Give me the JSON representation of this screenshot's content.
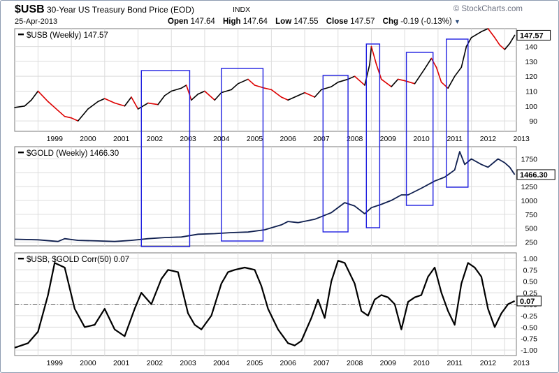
{
  "header": {
    "symbol": "$USB",
    "description": "30-Year US Treasury Bond Price (EOD)",
    "exchange": "INDX",
    "brand": "© StockCharts.com",
    "date": "25-Apr-2013",
    "open_label": "Open",
    "open": "147.64",
    "high_label": "High",
    "high": "147.64",
    "low_label": "Low",
    "low": "147.55",
    "close_label": "Close",
    "close": "147.57",
    "chg_label": "Chg",
    "chg": "-0.19 (-0.13%)"
  },
  "colors": {
    "usb_up": "#000000",
    "usb_down": "#dd0000",
    "gold_line": "#0f1f4f",
    "corr_line": "#000000",
    "highlight_box": "#2020e0",
    "zero_line": "#555555"
  },
  "chart_data": [
    {
      "type": "line",
      "title": "$USB (Weekly) 147.57",
      "style": "weekly price line, black up-weeks / red down-weeks",
      "x_labels": [
        "1999",
        "2000",
        "2001",
        "2002",
        "2003",
        "2004",
        "2005",
        "2006",
        "2007",
        "2008",
        "2009",
        "2010",
        "2011",
        "2012",
        "2013"
      ],
      "x_range": [
        "1998-04",
        "2013-04"
      ],
      "y_ticks": [
        90,
        100,
        110,
        120,
        130,
        140
      ],
      "ylim": [
        83,
        152
      ],
      "last_value_badge": "147.57",
      "grid": true,
      "series": [
        {
          "x": [
            1998.3,
            1998.6,
            1998.8,
            1999.0,
            1999.3,
            1999.6,
            1999.8,
            2000.0,
            2000.2,
            2000.5,
            2000.8,
            2001.0,
            2001.3,
            2001.6,
            2001.8,
            2002.0,
            2002.3,
            2002.6,
            2002.8,
            2003.0,
            2003.3,
            2003.45,
            2003.6,
            2003.8,
            2004.0,
            2004.3,
            2004.5,
            2004.8,
            2005.0,
            2005.3,
            2005.5,
            2005.8,
            2006.0,
            2006.3,
            2006.5,
            2006.8,
            2007.0,
            2007.3,
            2007.5,
            2007.8,
            2008.0,
            2008.3,
            2008.5,
            2008.8,
            2008.95,
            2009.0,
            2009.15,
            2009.3,
            2009.6,
            2009.8,
            2010.0,
            2010.3,
            2010.6,
            2010.8,
            2010.95,
            2011.1,
            2011.3,
            2011.5,
            2011.7,
            2011.85,
            2012.0,
            2012.3,
            2012.5,
            2012.7,
            2012.85,
            2013.0,
            2013.15,
            2013.3
          ],
          "values": [
            99,
            100,
            104,
            110,
            103,
            97,
            93,
            92,
            90,
            98,
            103,
            105,
            102,
            100,
            106,
            98,
            102,
            101,
            107,
            110,
            112,
            114,
            104,
            108,
            110,
            104,
            109,
            111,
            115,
            118,
            114,
            112,
            111,
            106,
            104,
            107,
            109,
            106,
            111,
            113,
            116,
            118,
            120,
            114,
            128,
            140,
            128,
            118,
            113,
            118,
            117,
            115,
            125,
            132,
            126,
            116,
            112,
            120,
            126,
            140,
            146,
            150,
            152,
            146,
            141,
            138,
            142,
            147.57
          ]
        }
      ]
    },
    {
      "type": "line",
      "title": "$GOLD (Weekly) 1466.30",
      "x_labels": [
        "1999",
        "2000",
        "2001",
        "2002",
        "2003",
        "2004",
        "2005",
        "2006",
        "2007",
        "2008",
        "2009",
        "2010",
        "2011",
        "2012",
        "2013"
      ],
      "y_ticks": [
        250,
        500,
        750,
        1000,
        1250,
        1500,
        1750
      ],
      "ylim": [
        180,
        1970
      ],
      "last_value_badge": "1466.30",
      "grid": true,
      "series": [
        {
          "x": [
            1998.3,
            1999.0,
            1999.6,
            1999.8,
            2000.2,
            2000.8,
            2001.3,
            2001.8,
            2002.3,
            2002.8,
            2003.3,
            2003.8,
            2004.3,
            2004.8,
            2005.3,
            2005.8,
            2006.3,
            2006.5,
            2006.8,
            2007.3,
            2007.8,
            2008.2,
            2008.5,
            2008.8,
            2009.0,
            2009.3,
            2009.6,
            2009.9,
            2010.1,
            2010.5,
            2010.9,
            2011.2,
            2011.5,
            2011.65,
            2011.8,
            2012.0,
            2012.3,
            2012.5,
            2012.8,
            2013.0,
            2013.15,
            2013.3
          ],
          "values": [
            300,
            290,
            260,
            310,
            280,
            270,
            260,
            280,
            310,
            330,
            340,
            390,
            400,
            420,
            430,
            470,
            560,
            620,
            600,
            660,
            780,
            960,
            900,
            760,
            870,
            930,
            1000,
            1100,
            1100,
            1220,
            1350,
            1420,
            1550,
            1880,
            1650,
            1750,
            1650,
            1600,
            1750,
            1680,
            1600,
            1466.3
          ]
        }
      ]
    },
    {
      "type": "line",
      "title": "$USB, $GOLD Corr(50) 0.07",
      "x_labels": [
        "1999",
        "2000",
        "2001",
        "2002",
        "2003",
        "2004",
        "2005",
        "2006",
        "2007",
        "2008",
        "2009",
        "2010",
        "2011",
        "2012",
        "2013"
      ],
      "y_ticks": [
        -1.0,
        -0.75,
        -0.5,
        -0.25,
        0.0,
        0.25,
        0.5,
        0.75,
        1.0
      ],
      "ylim": [
        -1.12,
        1.12
      ],
      "reference_line": 0,
      "last_value_badge": "0.07",
      "grid": true,
      "series": [
        {
          "x": [
            1998.3,
            1998.7,
            1999.0,
            1999.3,
            1999.5,
            1999.8,
            2000.1,
            2000.4,
            2000.7,
            2001.0,
            2001.3,
            2001.6,
            2001.9,
            2002.1,
            2002.4,
            2002.7,
            2002.9,
            2003.2,
            2003.5,
            2003.7,
            2003.9,
            2004.2,
            2004.5,
            2004.7,
            2004.9,
            2005.2,
            2005.5,
            2005.7,
            2005.9,
            2006.2,
            2006.5,
            2006.7,
            2006.9,
            2007.2,
            2007.4,
            2007.6,
            2007.8,
            2008.0,
            2008.2,
            2008.5,
            2008.7,
            2008.9,
            2009.1,
            2009.3,
            2009.5,
            2009.7,
            2009.9,
            2010.1,
            2010.3,
            2010.5,
            2010.7,
            2010.9,
            2011.1,
            2011.3,
            2011.5,
            2011.7,
            2011.9,
            2012.1,
            2012.3,
            2012.5,
            2012.7,
            2012.9,
            2013.1,
            2013.3
          ],
          "values": [
            -0.95,
            -0.85,
            -0.6,
            0.2,
            0.9,
            0.8,
            -0.1,
            -0.5,
            -0.45,
            -0.1,
            -0.55,
            -0.7,
            -0.1,
            0.25,
            0.0,
            0.55,
            0.75,
            0.7,
            -0.2,
            -0.45,
            -0.55,
            -0.25,
            0.45,
            0.7,
            0.75,
            0.8,
            0.75,
            0.4,
            -0.1,
            -0.55,
            -0.85,
            -0.9,
            -0.8,
            -0.3,
            0.1,
            -0.3,
            0.5,
            0.95,
            0.9,
            0.45,
            -0.15,
            -0.25,
            0.1,
            0.2,
            0.15,
            0.0,
            -0.55,
            0.05,
            0.15,
            0.2,
            0.6,
            0.8,
            0.25,
            -0.15,
            -0.45,
            0.45,
            0.9,
            0.8,
            0.6,
            -0.1,
            -0.5,
            -0.2,
            0.0,
            0.07
          ]
        }
      ]
    }
  ],
  "highlight_periods": [
    {
      "start": 2002.1,
      "end": 2003.55
    },
    {
      "start": 2004.5,
      "end": 2005.75
    },
    {
      "start": 2007.55,
      "end": 2008.3
    },
    {
      "start": 2008.85,
      "end": 2009.25
    },
    {
      "start": 2010.05,
      "end": 2010.85
    },
    {
      "start": 2011.25,
      "end": 2011.9
    }
  ]
}
